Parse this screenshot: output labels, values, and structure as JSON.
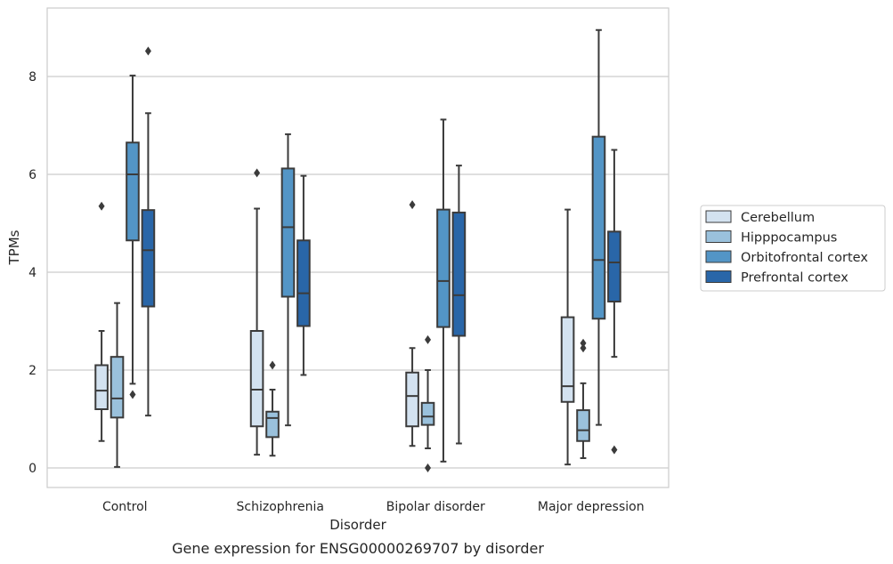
{
  "chart_data": {
    "type": "box",
    "title": "Gene expression for ENSG00000269707 by disorder",
    "xlabel": "Disorder",
    "ylabel": "TPMs",
    "ylim": [
      -0.4,
      9.4
    ],
    "yticks": [
      0,
      2,
      4,
      6,
      8
    ],
    "grid": true,
    "legend_position": "right",
    "categories": [
      "Control",
      "Schizophrenia",
      "Bipolar disorder",
      "Major depression"
    ],
    "series": [
      {
        "name": "Cerebellum",
        "color": "#d3e2f0",
        "boxes": [
          {
            "whisker_low": 0.55,
            "q1": 1.2,
            "median": 1.58,
            "q3": 2.1,
            "whisker_high": 2.8,
            "outliers": [
              5.35
            ]
          },
          {
            "whisker_low": 0.27,
            "q1": 0.85,
            "median": 1.6,
            "q3": 2.8,
            "whisker_high": 5.3,
            "outliers": [
              6.03
            ]
          },
          {
            "whisker_low": 0.45,
            "q1": 0.85,
            "median": 1.47,
            "q3": 1.95,
            "whisker_high": 2.45,
            "outliers": [
              5.38
            ]
          },
          {
            "whisker_low": 0.07,
            "q1": 1.35,
            "median": 1.67,
            "q3": 3.08,
            "whisker_high": 5.28,
            "outliers": []
          }
        ]
      },
      {
        "name": "Hipppocampus",
        "color": "#9ac1dc",
        "boxes": [
          {
            "whisker_low": 0.02,
            "q1": 1.03,
            "median": 1.42,
            "q3": 2.27,
            "whisker_high": 3.37,
            "outliers": []
          },
          {
            "whisker_low": 0.25,
            "q1": 0.63,
            "median": 1.02,
            "q3": 1.15,
            "whisker_high": 1.6,
            "outliers": [
              2.1
            ]
          },
          {
            "whisker_low": 0.4,
            "q1": 0.88,
            "median": 1.05,
            "q3": 1.33,
            "whisker_high": 2.0,
            "outliers": [
              2.62,
              0.0
            ]
          },
          {
            "whisker_low": 0.2,
            "q1": 0.55,
            "median": 0.77,
            "q3": 1.18,
            "whisker_high": 1.73,
            "outliers": [
              2.45,
              2.55
            ]
          }
        ]
      },
      {
        "name": "Orbitofrontal cortex",
        "color": "#5395c6",
        "boxes": [
          {
            "whisker_low": 1.72,
            "q1": 4.65,
            "median": 6.0,
            "q3": 6.65,
            "whisker_high": 8.02,
            "outliers": [
              1.5
            ]
          },
          {
            "whisker_low": 0.87,
            "q1": 3.5,
            "median": 4.92,
            "q3": 6.12,
            "whisker_high": 6.82,
            "outliers": []
          },
          {
            "whisker_low": 0.13,
            "q1": 2.88,
            "median": 3.82,
            "q3": 5.28,
            "whisker_high": 7.12,
            "outliers": []
          },
          {
            "whisker_low": 0.88,
            "q1": 3.05,
            "median": 4.25,
            "q3": 6.77,
            "whisker_high": 8.95,
            "outliers": []
          }
        ]
      },
      {
        "name": "Prefrontal cortex",
        "color": "#2966a8",
        "boxes": [
          {
            "whisker_low": 1.07,
            "q1": 3.3,
            "median": 4.45,
            "q3": 5.27,
            "whisker_high": 7.25,
            "outliers": [
              8.52
            ]
          },
          {
            "whisker_low": 1.9,
            "q1": 2.9,
            "median": 3.57,
            "q3": 4.65,
            "whisker_high": 5.97,
            "outliers": []
          },
          {
            "whisker_low": 0.5,
            "q1": 2.7,
            "median": 3.53,
            "q3": 5.22,
            "whisker_high": 6.18,
            "outliers": []
          },
          {
            "whisker_low": 2.27,
            "q1": 3.4,
            "median": 4.2,
            "q3": 4.83,
            "whisker_high": 6.5,
            "outliers": [
              0.37
            ]
          }
        ]
      }
    ]
  }
}
